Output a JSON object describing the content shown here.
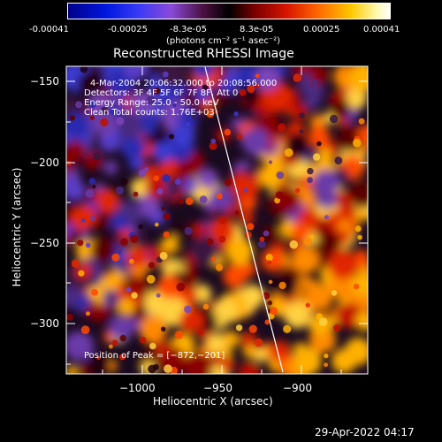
{
  "colorbar": {
    "ticks": [
      "-0.00041",
      "-0.00025",
      "-8.3e-05",
      "8.3e-05",
      "0.00025",
      "0.00041"
    ],
    "units": "(photons cm⁻² s⁻¹ asec⁻²)"
  },
  "plot": {
    "title": "Reconstructed RHESSI Image",
    "xlabel": "Heliocentric X (arcsec)",
    "ylabel": "Heliocentric Y (arcsec)",
    "xticks": [
      "−1000",
      "−950",
      "−900"
    ],
    "yticks": [
      "−150",
      "−200",
      "−250",
      "−300"
    ],
    "info": {
      "line1": "4-Mar-2004 20:06:32.000 to 20:08:56.000",
      "line2": "Detectors: 3F 4F 5F 6F 7F 8F, Att 0",
      "line3": "Energy Range: 25.0 - 50.0 keV",
      "line4": "Clean    Total counts: 1.76E+03"
    },
    "peak_text": "Position of Peak = [−872,−201]"
  },
  "footer": {
    "timestamp": "29-Apr-2022 04:17"
  }
}
